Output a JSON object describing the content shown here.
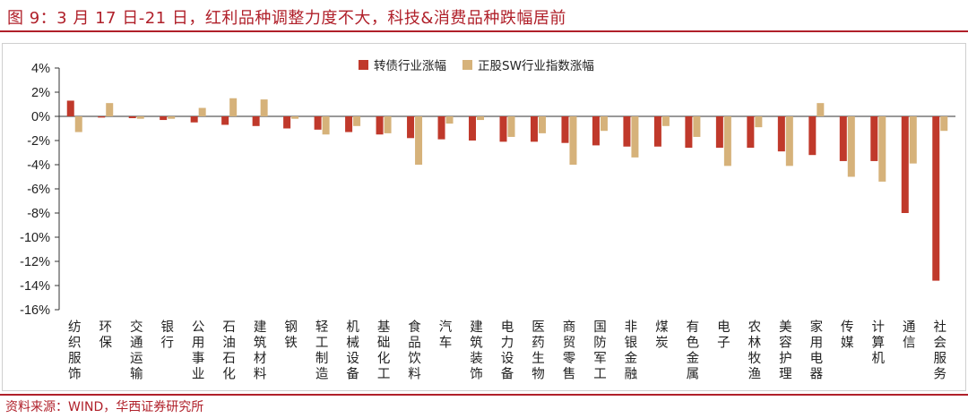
{
  "title": "图 9：3 月 17 日-21 日，红利品种调整力度不大，科技&消费品种跌幅居前",
  "source": "资料来源：WIND，华西证券研究所",
  "colors": {
    "accent": "#b0202a",
    "series1": "#c0392b",
    "series2": "#d6b27a"
  },
  "chart_data": {
    "type": "bar",
    "categories": [
      "纺织服饰",
      "环保",
      "交通运输",
      "银行",
      "公用事业",
      "石油石化",
      "建筑材料",
      "钢铁",
      "轻工制造",
      "机械设备",
      "基础化工",
      "食品饮料",
      "汽车",
      "建筑装饰",
      "电力设备",
      "医药生物",
      "商贸零售",
      "国防军工",
      "非银金融",
      "煤炭",
      "有色金属",
      "电子",
      "农林牧渔",
      "美容护理",
      "家用电器",
      "传媒",
      "计算机",
      "通信",
      "社会服务"
    ],
    "series": [
      {
        "name": "转债行业涨幅",
        "values": [
          1.3,
          -0.1,
          -0.15,
          -0.3,
          -0.5,
          -0.7,
          -0.8,
          -1.0,
          -1.1,
          -1.3,
          -1.5,
          -1.8,
          -1.9,
          -2.0,
          -2.1,
          -2.1,
          -2.2,
          -2.4,
          -2.5,
          -2.5,
          -2.6,
          -2.6,
          -2.6,
          -2.9,
          -3.2,
          -3.7,
          -3.7,
          -8.0,
          -13.6
        ]
      },
      {
        "name": "正股SW行业指数涨幅",
        "values": [
          -1.3,
          1.1,
          -0.2,
          -0.2,
          0.7,
          1.5,
          1.4,
          -0.2,
          -1.5,
          -0.8,
          -1.4,
          -4.0,
          -0.6,
          -0.3,
          -1.7,
          -1.4,
          -4.0,
          -1.2,
          -3.4,
          -0.8,
          -1.7,
          -4.1,
          -0.9,
          -4.1,
          1.1,
          -5.0,
          -5.4,
          -3.9,
          -1.2
        ]
      }
    ],
    "ylim": [
      -16,
      4
    ],
    "yticks": [
      "4%",
      "2%",
      "0%",
      "-2%",
      "-4%",
      "-6%",
      "-8%",
      "-10%",
      "-12%",
      "-14%",
      "-16%"
    ],
    "grid": false,
    "legend_position": "top-center"
  }
}
